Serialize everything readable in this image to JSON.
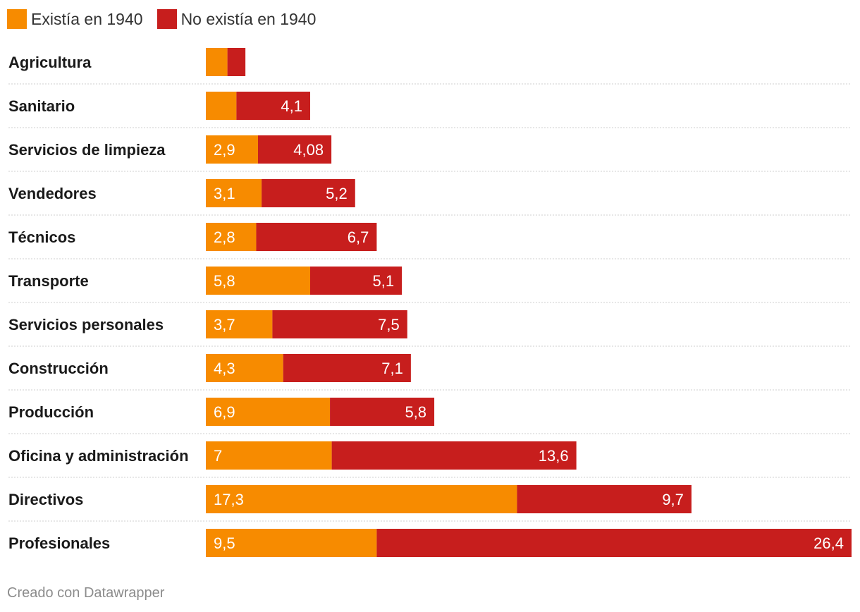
{
  "legend": [
    {
      "label": "Existía en 1940",
      "color": "#f78b00"
    },
    {
      "label": "No existía en 1940",
      "color": "#c71e1d"
    }
  ],
  "chart_data": {
    "type": "bar",
    "orientation": "horizontal",
    "stacked": true,
    "categories": [
      "Agricultura",
      "Sanitario",
      "Servicios de limpieza",
      "Vendedores",
      "Técnicos",
      "Transporte",
      "Servicios personales",
      "Construcción",
      "Producción",
      "Oficina y administración",
      "Directivos",
      "Profesionales"
    ],
    "series": [
      {
        "name": "Existía en 1940",
        "color": "#f78b00",
        "values": [
          1.2,
          1.7,
          2.9,
          3.1,
          2.8,
          5.8,
          3.7,
          4.3,
          6.9,
          7,
          17.3,
          9.5
        ],
        "labels": [
          "",
          "",
          "2,9",
          "3,1",
          "2,8",
          "5,8",
          "3,7",
          "4,3",
          "6,9",
          "7",
          "17,3",
          "9,5"
        ]
      },
      {
        "name": "No existía en 1940",
        "color": "#c71e1d",
        "values": [
          1.0,
          4.1,
          4.08,
          5.2,
          6.7,
          5.1,
          7.5,
          7.1,
          5.8,
          13.6,
          9.7,
          26.4
        ],
        "labels": [
          "",
          "4,1",
          "4,08",
          "5,2",
          "6,7",
          "5,1",
          "7,5",
          "7,1",
          "5,8",
          "13,6",
          "9,7",
          "26,4"
        ]
      }
    ],
    "xlim": [
      0,
      35.9
    ]
  },
  "footer": "Creado con Datawrapper"
}
